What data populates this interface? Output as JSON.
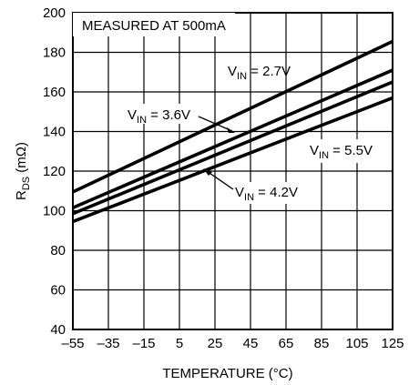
{
  "chart_data": {
    "type": "line",
    "title": "",
    "note": "MEASURED AT 500mA",
    "xlabel": "TEMPERATURE (°C)",
    "ylabel": {
      "main": "R",
      "sub": "DS",
      "unit": " (mΩ)"
    },
    "xlim": [
      -55,
      125
    ],
    "ylim": [
      40,
      200
    ],
    "xticks": [
      -55,
      -35,
      -15,
      5,
      25,
      45,
      65,
      85,
      105,
      125
    ],
    "xtick_labels": [
      "–55",
      "–35",
      "–15",
      "5",
      "25",
      "45",
      "65",
      "85",
      "105",
      "125"
    ],
    "yticks": [
      40,
      60,
      80,
      100,
      120,
      140,
      160,
      180,
      200
    ],
    "ytick_labels": [
      "40",
      "60",
      "80",
      "100",
      "120",
      "140",
      "160",
      "180",
      "200"
    ],
    "grid": true,
    "series": [
      {
        "name": "2.7V",
        "label_prefix": "V",
        "label_sub": "IN",
        "label_value": " = 2.7V",
        "x": [
          -55,
          125
        ],
        "y": [
          109.5,
          185.5
        ]
      },
      {
        "name": "3.6V",
        "label_prefix": "V",
        "label_sub": "IN",
        "label_value": " = 3.6V",
        "x": [
          -55,
          125
        ],
        "y": [
          101.5,
          171
        ]
      },
      {
        "name": "4.2V",
        "label_prefix": "V",
        "label_sub": "IN",
        "label_value": " = 4.2V",
        "x": [
          -55,
          125
        ],
        "y": [
          98.5,
          165
        ]
      },
      {
        "name": "5.5V",
        "label_prefix": "V",
        "label_sub": "IN",
        "label_value": " = 5.5V",
        "x": [
          -55,
          125
        ],
        "y": [
          94.5,
          157
        ]
      }
    ]
  }
}
